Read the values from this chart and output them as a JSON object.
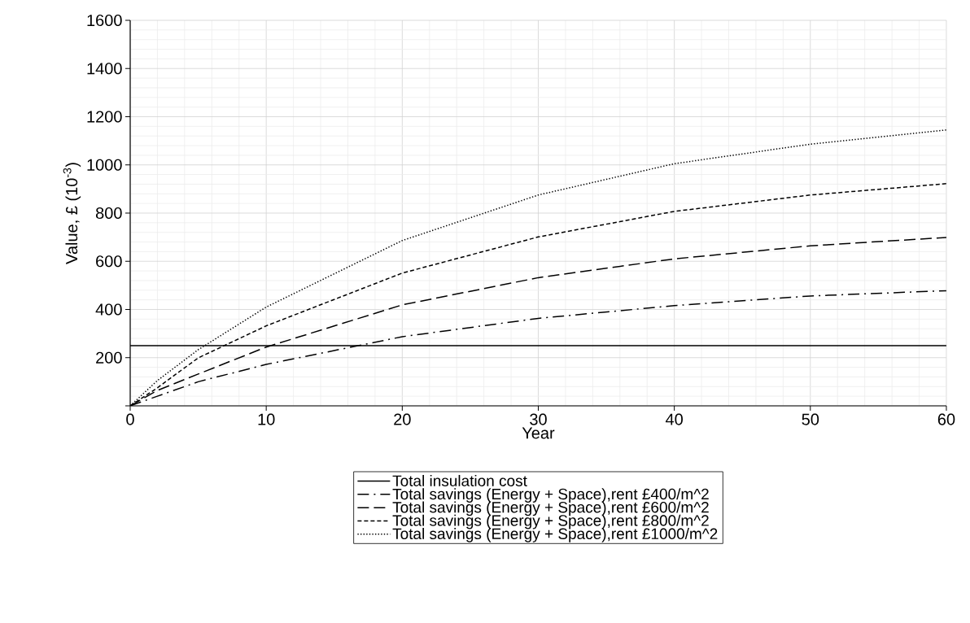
{
  "chart_data": {
    "type": "line",
    "xlabel": "Year",
    "ylabel": "Value, £ (10$^{-3}$)",
    "xlim": [
      0,
      60
    ],
    "xticks": [
      0,
      10,
      20,
      30,
      40,
      50,
      60
    ],
    "ylim": [
      0,
      1600
    ],
    "yticks": [
      {
        "value": 0,
        "label": null
      },
      200,
      400,
      600,
      800,
      1000,
      1200,
      1400,
      1600
    ],
    "grid": true,
    "legend": "bottom",
    "marker": "none",
    "series": [
      {
        "name": "Total insulation cost",
        "color": "#000000",
        "line_style": "solid",
        "x": [
          0,
          60
        ],
        "values": [
          250,
          250
        ]
      },
      {
        "name": "Total savings (Energy + Space),rent £400/m^2",
        "color": "#000000",
        "line_style": "dashdot",
        "x": [
          0,
          2,
          5,
          10,
          20,
          30,
          40,
          50,
          60
        ],
        "values": [
          0,
          40,
          100,
          172,
          287,
          363,
          416,
          456,
          478
        ]
      },
      {
        "name": "Total savings (Energy + Space),rent £600/m^2",
        "color": "#000000",
        "line_style": "longdashed",
        "x": [
          0,
          2,
          5,
          10,
          20,
          30,
          40,
          50,
          60
        ],
        "values": [
          0,
          64,
          132,
          244,
          419,
          532,
          610,
          664,
          699
        ]
      },
      {
        "name": "Total savings (Energy + Space),rent £800/m^2",
        "color": "#000000",
        "line_style": "dashed",
        "x": [
          0,
          2,
          5,
          10,
          20,
          30,
          40,
          50,
          60
        ],
        "values": [
          0,
          75,
          199,
          332,
          551,
          701,
          807,
          875,
          922
        ]
      },
      {
        "name": "Total savings (Energy + Space),rent £1000/m^2",
        "color": "#000000",
        "line_style": "dotted",
        "x": [
          0,
          2,
          5,
          10,
          20,
          30,
          40,
          50,
          60
        ],
        "values": [
          0,
          105,
          233,
          410,
          686,
          875,
          1005,
          1086,
          1145
        ]
      }
    ]
  }
}
